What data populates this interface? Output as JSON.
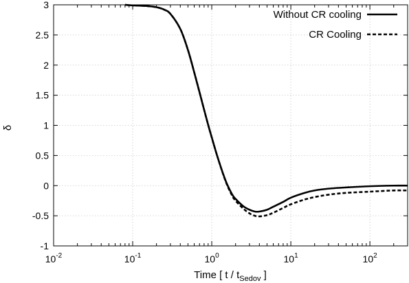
{
  "chart_data": {
    "type": "line",
    "xscale": "log",
    "xlim": [
      0.01,
      300
    ],
    "ylim": [
      -1,
      3
    ],
    "xlabel_main": "Time [ t / t",
    "xlabel_sub": "Sedov",
    "xlabel_end": " ]",
    "ylabel": "δ",
    "grid": true,
    "legend_position": "top-right",
    "x_ticks": [
      {
        "value": 0.01,
        "base": "10",
        "exp": "-2"
      },
      {
        "value": 0.1,
        "base": "10",
        "exp": "-1"
      },
      {
        "value": 1,
        "base": "10",
        "exp": "0"
      },
      {
        "value": 10,
        "base": "10",
        "exp": "1"
      },
      {
        "value": 100,
        "base": "10",
        "exp": "2"
      }
    ],
    "y_ticks": [
      {
        "value": 3,
        "label": "3"
      },
      {
        "value": 2.5,
        "label": "2.5"
      },
      {
        "value": 2,
        "label": "2"
      },
      {
        "value": 1.5,
        "label": "1.5"
      },
      {
        "value": 1,
        "label": "1"
      },
      {
        "value": 0.5,
        "label": "0.5"
      },
      {
        "value": 0,
        "label": "0"
      },
      {
        "value": -0.5,
        "label": "-0.5"
      },
      {
        "value": -1,
        "label": "-1"
      }
    ],
    "series": [
      {
        "name": "Without CR cooling",
        "style": "solid",
        "color": "#000000",
        "x": [
          0.08,
          0.1,
          0.15,
          0.2,
          0.25,
          0.3,
          0.4,
          0.5,
          0.6,
          0.7,
          0.8,
          0.9,
          1.0,
          1.2,
          1.5,
          1.8,
          2.0,
          2.5,
          3.0,
          3.5,
          4.0,
          5.0,
          6.0,
          8.0,
          10,
          15,
          20,
          30,
          50,
          100,
          200,
          300
        ],
        "y": [
          3.0,
          2.99,
          2.98,
          2.96,
          2.92,
          2.85,
          2.6,
          2.25,
          1.88,
          1.55,
          1.26,
          1.01,
          0.8,
          0.45,
          0.08,
          -0.14,
          -0.22,
          -0.34,
          -0.4,
          -0.43,
          -0.43,
          -0.4,
          -0.35,
          -0.27,
          -0.2,
          -0.12,
          -0.08,
          -0.05,
          -0.03,
          -0.01,
          0.0,
          0.0
        ]
      },
      {
        "name": "CR Cooling",
        "style": "dashed",
        "color": "#000000",
        "x": [
          0.08,
          0.1,
          0.15,
          0.2,
          0.25,
          0.3,
          0.4,
          0.5,
          0.6,
          0.7,
          0.8,
          0.9,
          1.0,
          1.2,
          1.5,
          1.8,
          2.0,
          2.5,
          3.0,
          3.5,
          4.0,
          5.0,
          6.0,
          8.0,
          10,
          15,
          20,
          30,
          50,
          100,
          200,
          300
        ],
        "y": [
          3.0,
          2.99,
          2.98,
          2.96,
          2.92,
          2.85,
          2.6,
          2.25,
          1.88,
          1.55,
          1.26,
          1.01,
          0.8,
          0.45,
          0.07,
          -0.16,
          -0.25,
          -0.38,
          -0.46,
          -0.5,
          -0.51,
          -0.49,
          -0.45,
          -0.37,
          -0.31,
          -0.23,
          -0.19,
          -0.15,
          -0.12,
          -0.1,
          -0.08,
          -0.08
        ]
      }
    ]
  }
}
